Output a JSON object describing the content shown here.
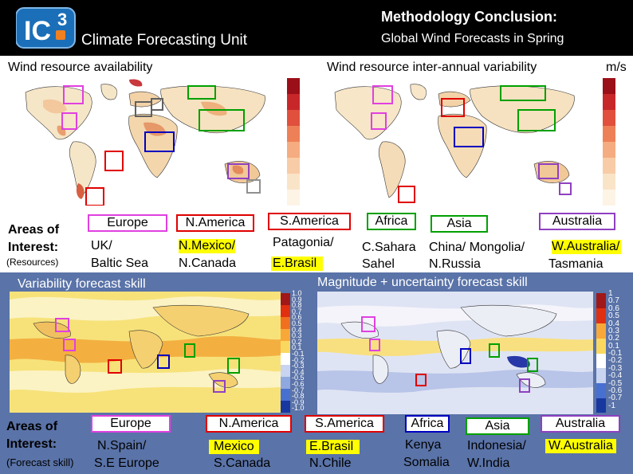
{
  "header": {
    "logo_text": "IC3",
    "unit_title": "Climate Forecasting Unit",
    "main_title": "Methodology Conclusion:",
    "subtitle": "Global Wind Forecasts in Spring"
  },
  "top_panels": {
    "left_title": "Wind resource availability",
    "right_title": "Wind resource inter-annual variability",
    "units": "m/s"
  },
  "resources_row": {
    "label_line1": "Areas of",
    "label_line2": "Interest:",
    "label_line3": "(Resources)",
    "regions": [
      {
        "name": "Europe",
        "line1": "UK/",
        "line2": "Baltic Sea",
        "color": "#e040e0"
      },
      {
        "name": "N.America",
        "line1": "N.Mexico/",
        "line2": "N.Canada",
        "color": "#e00000"
      },
      {
        "name": "S.America",
        "line1": "Patagonia/",
        "line2": "E.Brasil",
        "color": "#e00000"
      },
      {
        "name": "Africa",
        "line1": "C.Sahara",
        "line2": "Sahel",
        "color": "#00a000"
      },
      {
        "name": "Asia",
        "line1": "China/ Mongolia/",
        "line2": "N.Russia",
        "color": "#00a000"
      },
      {
        "name": "Australia",
        "line1": "W.Australia/",
        "line2": "Tasmania",
        "color": "#9040c0"
      }
    ]
  },
  "skill_panels": {
    "left_title": "Variability forecast skill",
    "right_title": "Magnitude + uncertainty forecast skill",
    "left_ticks": [
      "1.0",
      "0.9",
      "0.8",
      "0.7",
      "0.6",
      "0.5",
      "0.4",
      "0.3",
      "0.2",
      "0.1",
      "-0.1",
      "-0.2",
      "-0.3",
      "-0.4",
      "-0.5",
      "-0.6",
      "-0.7",
      "-0.8",
      "-0.9",
      "-1.0"
    ],
    "right_ticks": [
      "1",
      "0.7",
      "0.6",
      "0.5",
      "0.4",
      "0.3",
      "0.2",
      "0.1",
      "-0.1",
      "-0.2",
      "-0.3",
      "-0.4",
      "-0.5",
      "-0.6",
      "-0.7",
      "-1"
    ]
  },
  "forecast_row": {
    "label_line1": "Areas of",
    "label_line2": "Interest:",
    "label_line3": "(Forecast skill)",
    "regions": [
      {
        "name": "Europe",
        "line1": "N.Spain/",
        "line2": "S.E Europe",
        "color": "#e040e0"
      },
      {
        "name": "N.America",
        "line1": "Mexico",
        "line2": "S.Canada",
        "color": "#e00000"
      },
      {
        "name": "S.America",
        "line1": "E.Brasil",
        "line2": "N.Chile",
        "color": "#e00000"
      },
      {
        "name": "Africa",
        "line1": "Kenya",
        "line2": "Somalia",
        "color": "#0000c0"
      },
      {
        "name": "Asia",
        "line1": "Indonesia/",
        "line2": "W.India",
        "color": "#00a000"
      },
      {
        "name": "Australia",
        "line1": "W.Australia",
        "line2": "",
        "color": "#9040c0"
      }
    ]
  }
}
